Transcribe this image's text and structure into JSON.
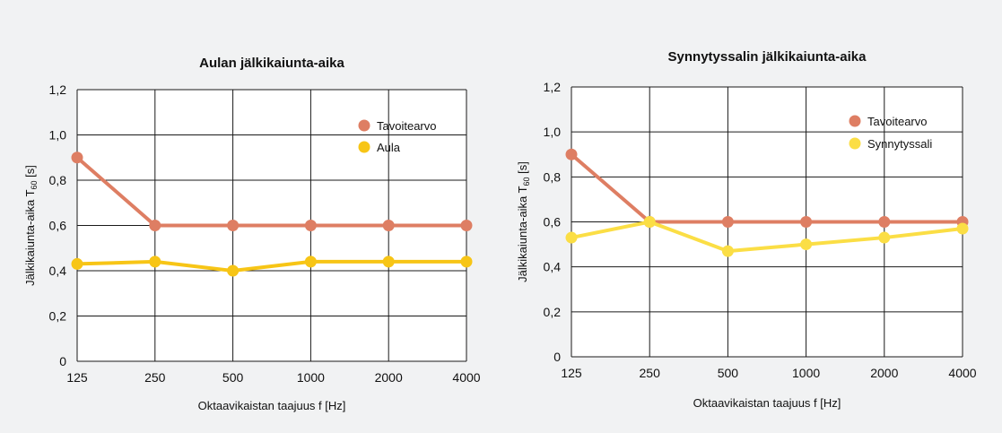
{
  "colors": {
    "target": "#de7e63",
    "aula": "#f7c516",
    "synnytyssali": "#fbde45",
    "background": "#f1f2f3",
    "plot_background": "#ffffff",
    "grid": "#1a1a1a"
  },
  "chart_data": [
    {
      "type": "line",
      "title": "Aulan jälkikaiunta-aika",
      "xlabel": "Oktaavikaistan taajuus f [Hz]",
      "ylabel": "Jälkikaiunta-aika T",
      "ylabel_sub": "60",
      "ylabel_unit": " [s]",
      "categories": [
        "125",
        "250",
        "500",
        "1000",
        "2000",
        "4000"
      ],
      "yticks": [
        "0",
        "0,2",
        "0,4",
        "0,6",
        "0,8",
        "1,0",
        "1,2"
      ],
      "ylim": [
        0,
        1.2
      ],
      "grid": true,
      "legend_position": "top-right",
      "series": [
        {
          "name": "Tavoitearvo",
          "color_key": "target",
          "values": [
            0.9,
            0.6,
            0.6,
            0.6,
            0.6,
            0.6
          ]
        },
        {
          "name": "Aula",
          "color_key": "aula",
          "values": [
            0.43,
            0.44,
            0.4,
            0.44,
            0.44,
            0.44
          ]
        }
      ]
    },
    {
      "type": "line",
      "title": "Synnytyssalin jälkikaiunta-aika",
      "xlabel": "Oktaavikaistan taajuus f [Hz]",
      "ylabel": "Jälkikaiunta-aika T",
      "ylabel_sub": "60",
      "ylabel_unit": " [s]",
      "categories": [
        "125",
        "250",
        "500",
        "1000",
        "2000",
        "4000"
      ],
      "yticks": [
        "0",
        "0,2",
        "0,4",
        "0,6",
        "0,8",
        "1,0",
        "1,2"
      ],
      "ylim": [
        0,
        1.2
      ],
      "grid": true,
      "legend_position": "top-right",
      "series": [
        {
          "name": "Tavoitearvo",
          "color_key": "target",
          "values": [
            0.9,
            0.6,
            0.6,
            0.6,
            0.6,
            0.6
          ]
        },
        {
          "name": "Synnytyssali",
          "color_key": "synnytyssali",
          "values": [
            0.53,
            0.6,
            0.47,
            0.5,
            0.53,
            0.57
          ]
        }
      ]
    }
  ]
}
